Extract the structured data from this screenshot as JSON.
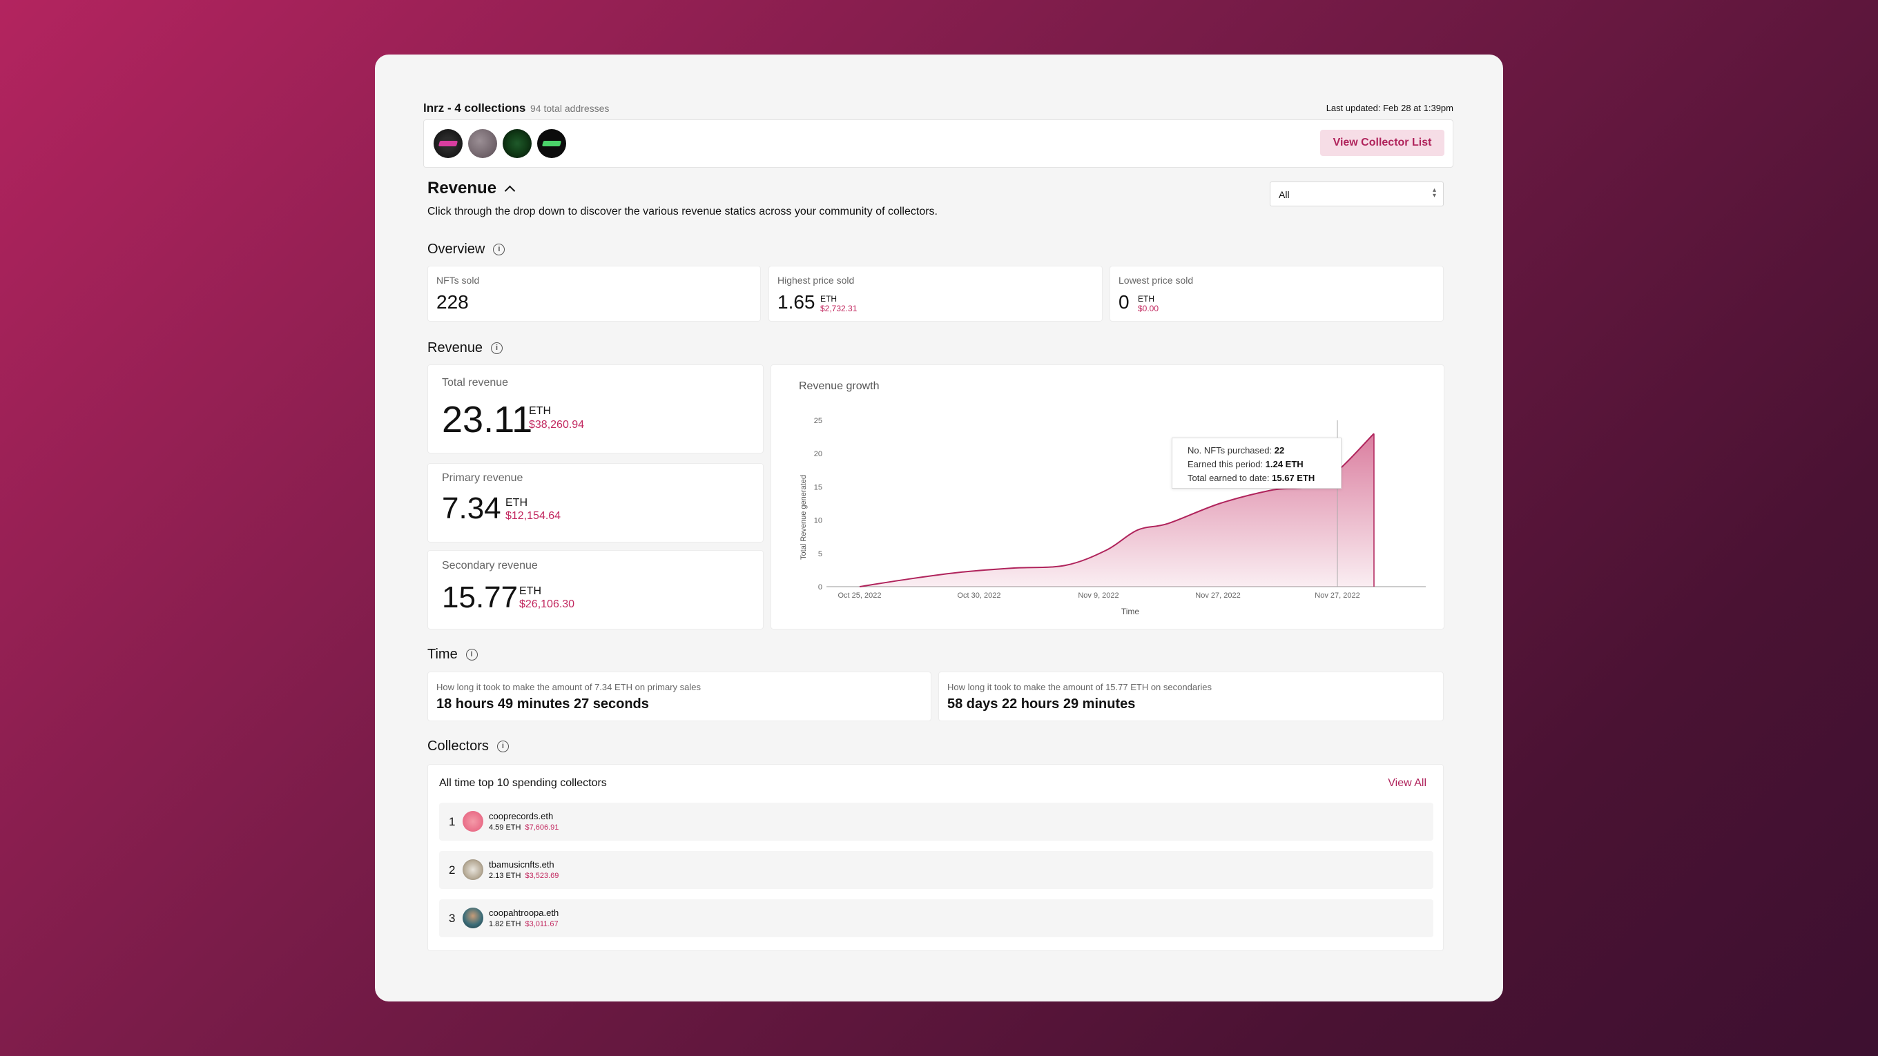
{
  "header": {
    "title": "lnrz - 4 collections",
    "addresses": "94 total addresses",
    "updated": "Last updated: Feb 28 at 1:39pm",
    "view_collector_list": "View Collector List"
  },
  "revenue_section": {
    "heading": "Revenue",
    "description": "Click through the drop down to discover the various revenue statics across your community of collectors.",
    "filter_value": "All"
  },
  "overview": {
    "title": "Overview",
    "nfts_sold_label": "NFTs sold",
    "nfts_sold_value": "228",
    "highest_label": "Highest price sold",
    "highest_value": "1.65",
    "highest_unit": "ETH",
    "highest_usd": "$2,732.31",
    "lowest_label": "Lowest price sold",
    "lowest_value": "0",
    "lowest_unit": "ETH",
    "lowest_usd": "$0.00"
  },
  "revenue": {
    "title": "Revenue",
    "total_label": "Total revenue",
    "total_value": "23.11",
    "total_unit": "ETH",
    "total_usd": "$38,260.94",
    "primary_label": "Primary revenue",
    "primary_value": "7.34",
    "primary_unit": "ETH",
    "primary_usd": "$12,154.64",
    "secondary_label": "Secondary revenue",
    "secondary_value": "15.77",
    "secondary_unit": "ETH",
    "secondary_usd": "$26,106.30"
  },
  "chart_data": {
    "type": "area",
    "title": "Revenue growth",
    "xlabel": "Time",
    "ylabel": "Total Revenue generated",
    "x_ticks": [
      "Oct 25, 2022",
      "Oct 30, 2022",
      "Nov 9, 2022",
      "Nov 27, 2022",
      "Nov 27, 2022"
    ],
    "y_ticks": [
      0,
      5,
      10,
      15,
      20,
      25
    ],
    "ylim": [
      0,
      25
    ],
    "x": [
      0,
      0.5,
      1,
      1.5,
      2,
      2.4,
      2.7,
      3,
      3.5,
      4,
      4.5,
      5
    ],
    "values": [
      0,
      1.2,
      2.2,
      2.8,
      3.2,
      5.5,
      8.5,
      9.5,
      12.5,
      14.5,
      15.7,
      23
    ],
    "color": "#b0245c",
    "tooltip": {
      "purchased_label": "No. NFTs purchased:",
      "purchased_value": "22",
      "period_label": "Earned this period:",
      "period_value": "1.24 ETH",
      "total_label": "Total earned to date:",
      "total_value": "15.67 ETH"
    }
  },
  "time": {
    "title": "Time",
    "primary_label": "How long it took to make the amount of 7.34 ETH on primary sales",
    "primary_value": "18 hours 49 minutes 27 seconds",
    "secondary_label": "How long it took to make the amount of 15.77 ETH on secondaries",
    "secondary_value": "58 days 22 hours 29 minutes"
  },
  "collectors": {
    "title": "Collectors",
    "subtitle": "All time top 10 spending collectors",
    "view_all": "View All",
    "rows": [
      {
        "rank": "1",
        "name": "cooprecords.eth",
        "eth": "4.59 ETH",
        "usd": "$7,606.91"
      },
      {
        "rank": "2",
        "name": "tbamusicnfts.eth",
        "eth": "2.13 ETH",
        "usd": "$3,523.69"
      },
      {
        "rank": "3",
        "name": "coopahtroopa.eth",
        "eth": "1.82 ETH",
        "usd": "$3,011.67"
      }
    ]
  }
}
